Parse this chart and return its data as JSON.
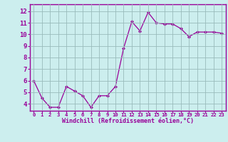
{
  "x": [
    0,
    1,
    2,
    3,
    4,
    5,
    6,
    7,
    8,
    9,
    10,
    11,
    12,
    13,
    14,
    15,
    16,
    17,
    18,
    19,
    20,
    21,
    22,
    23
  ],
  "y": [
    6.0,
    4.5,
    3.7,
    3.7,
    5.5,
    5.1,
    4.7,
    3.7,
    4.7,
    4.7,
    5.5,
    8.8,
    11.1,
    10.3,
    11.9,
    11.0,
    10.9,
    10.9,
    10.5,
    9.8,
    10.2,
    10.2,
    10.2,
    10.1
  ],
  "line_color": "#990099",
  "marker": "D",
  "marker_size": 2,
  "bg_color": "#cceeee",
  "grid_color": "#99bbbb",
  "xlabel": "Windchill (Refroidissement éolien,°C)",
  "xlabel_color": "#990099",
  "ylabel_ticks": [
    4,
    5,
    6,
    7,
    8,
    9,
    10,
    11,
    12
  ],
  "xlim": [
    -0.5,
    23.5
  ],
  "ylim": [
    3.4,
    12.6
  ],
  "tick_color": "#990099",
  "tick_label_color": "#990099",
  "spine_color": "#990099",
  "xlabel_fontsize": 6.0,
  "ytick_fontsize": 6.5,
  "xtick_fontsize": 5.2
}
